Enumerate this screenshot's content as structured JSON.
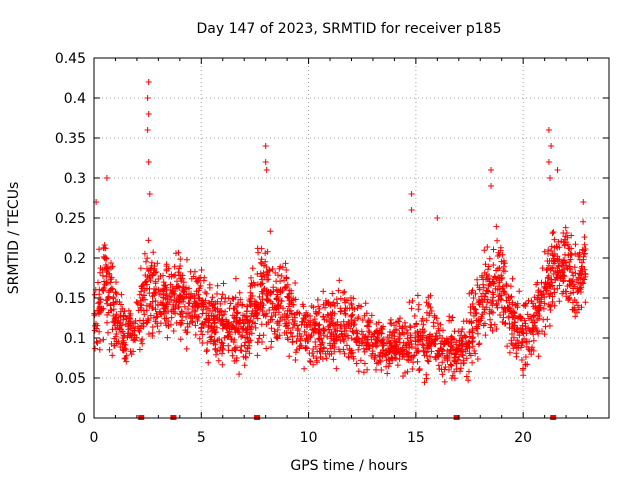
{
  "chart_data": {
    "type": "scatter",
    "title": "Day 147 of 2023, SRMTID for receiver p185",
    "xlabel": "GPS time / hours",
    "ylabel": "SRMTID / TECUs",
    "xlim": [
      0,
      24
    ],
    "ylim": [
      0,
      0.45
    ],
    "xticks": [
      0,
      5,
      10,
      15,
      20
    ],
    "xtick_labels": [
      "0",
      "5",
      "10",
      "15",
      "20"
    ],
    "yticks": [
      0,
      0.05,
      0.1,
      0.15,
      0.2,
      0.25,
      0.3,
      0.35,
      0.4,
      0.45
    ],
    "ytick_labels": [
      "0",
      "0.05",
      "0.1",
      "0.15",
      "0.2",
      "0.25",
      "0.3",
      "0.35",
      "0.4",
      "0.45"
    ],
    "grid": true,
    "marker": "+",
    "color": "#ff0000",
    "zero_markers_x": [
      2.2,
      3.7,
      7.6,
      16.9,
      21.4
    ],
    "envelope": {
      "x": [
        0.0,
        0.5,
        1.0,
        1.5,
        2.0,
        2.5,
        3.0,
        3.5,
        4.0,
        4.5,
        5.0,
        5.5,
        6.0,
        6.5,
        7.0,
        7.5,
        8.0,
        8.5,
        9.0,
        9.5,
        10.0,
        10.5,
        11.0,
        11.5,
        12.0,
        12.5,
        13.0,
        13.5,
        14.0,
        14.5,
        15.0,
        15.5,
        16.0,
        16.5,
        17.0,
        17.5,
        18.0,
        18.5,
        19.0,
        19.5,
        20.0,
        20.5,
        21.0,
        21.5,
        22.0,
        22.5,
        23.0
      ],
      "mean": [
        0.13,
        0.17,
        0.13,
        0.1,
        0.12,
        0.17,
        0.14,
        0.15,
        0.15,
        0.14,
        0.14,
        0.12,
        0.12,
        0.11,
        0.11,
        0.14,
        0.16,
        0.14,
        0.15,
        0.11,
        0.11,
        0.1,
        0.11,
        0.11,
        0.12,
        0.1,
        0.1,
        0.09,
        0.09,
        0.09,
        0.1,
        0.1,
        0.09,
        0.08,
        0.08,
        0.1,
        0.14,
        0.16,
        0.17,
        0.12,
        0.1,
        0.12,
        0.16,
        0.19,
        0.2,
        0.16,
        0.21
      ],
      "spread": [
        0.04,
        0.06,
        0.05,
        0.03,
        0.03,
        0.06,
        0.04,
        0.04,
        0.04,
        0.04,
        0.04,
        0.04,
        0.04,
        0.04,
        0.04,
        0.05,
        0.05,
        0.05,
        0.05,
        0.04,
        0.04,
        0.04,
        0.04,
        0.04,
        0.04,
        0.04,
        0.03,
        0.03,
        0.03,
        0.03,
        0.04,
        0.04,
        0.03,
        0.03,
        0.03,
        0.04,
        0.05,
        0.05,
        0.05,
        0.04,
        0.04,
        0.04,
        0.05,
        0.05,
        0.05,
        0.04,
        0.04
      ]
    },
    "spikes": [
      {
        "x": 0.1,
        "y": 0.27
      },
      {
        "x": 0.6,
        "y": 0.3
      },
      {
        "x": 2.55,
        "y": 0.42
      },
      {
        "x": 2.5,
        "y": 0.4
      },
      {
        "x": 2.55,
        "y": 0.38
      },
      {
        "x": 2.5,
        "y": 0.36
      },
      {
        "x": 2.55,
        "y": 0.32
      },
      {
        "x": 2.6,
        "y": 0.28
      },
      {
        "x": 8.0,
        "y": 0.34
      },
      {
        "x": 8.0,
        "y": 0.32
      },
      {
        "x": 8.05,
        "y": 0.31
      },
      {
        "x": 14.8,
        "y": 0.28
      },
      {
        "x": 14.8,
        "y": 0.26
      },
      {
        "x": 16.0,
        "y": 0.25
      },
      {
        "x": 18.5,
        "y": 0.31
      },
      {
        "x": 18.5,
        "y": 0.29
      },
      {
        "x": 21.2,
        "y": 0.36
      },
      {
        "x": 21.3,
        "y": 0.34
      },
      {
        "x": 21.2,
        "y": 0.32
      },
      {
        "x": 21.25,
        "y": 0.3
      },
      {
        "x": 21.6,
        "y": 0.31
      },
      {
        "x": 22.8,
        "y": 0.27
      }
    ]
  }
}
